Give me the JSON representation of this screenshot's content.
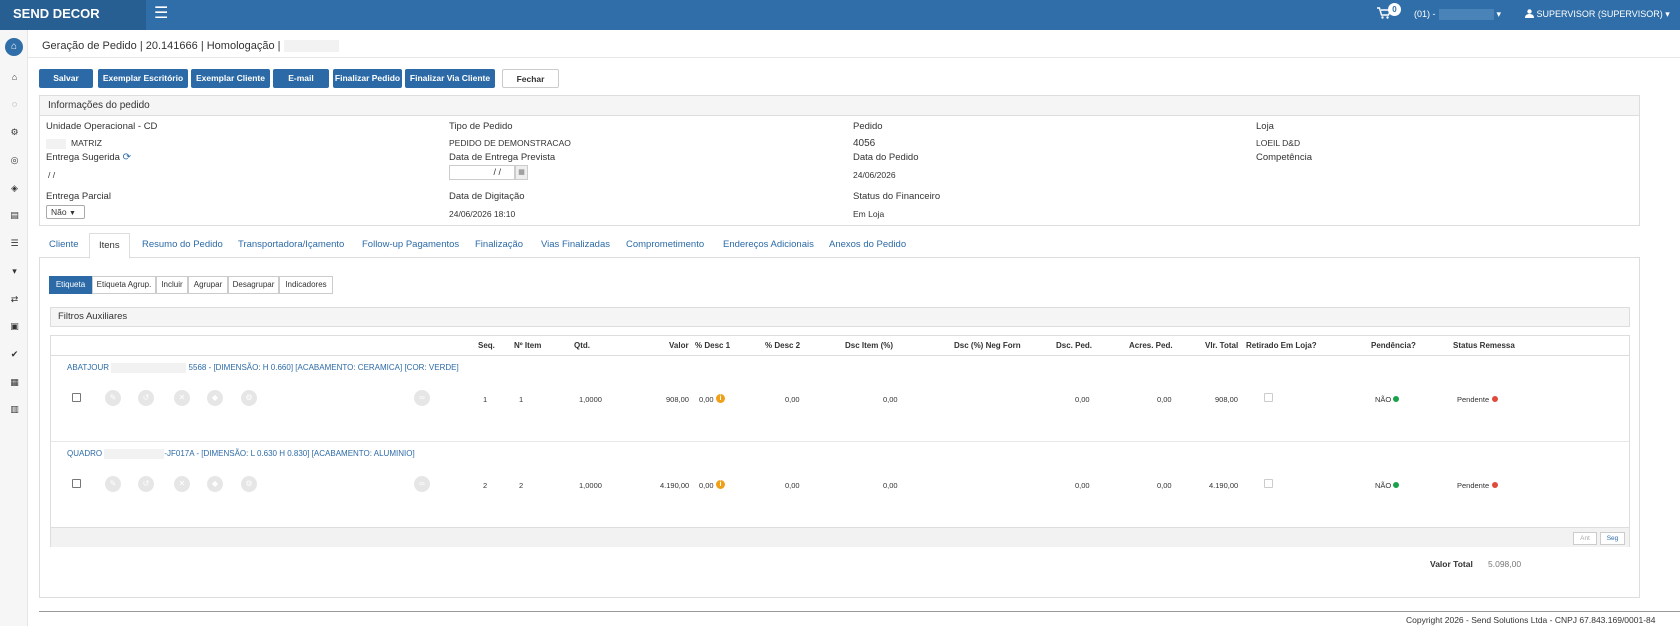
{
  "topbar": {
    "brand": "SEND DECOR",
    "cart_count": "0",
    "store_prefix": "(01) -",
    "user_label": "SUPERVISOR (SUPERVISOR)",
    "user_caret": "▾",
    "store_caret": "▾"
  },
  "breadcrumb": {
    "text": "Geração de Pedido | 20.141666 | Homologação |"
  },
  "toolbar": {
    "save": "Salvar",
    "copy_office": "Exemplar Escritório",
    "copy_client": "Exemplar Cliente",
    "email": "E-mail",
    "finish": "Finalizar Pedido",
    "finish_via": "Finalizar Via Cliente",
    "close": "Fechar"
  },
  "order_info": {
    "title": "Informações do pedido",
    "unit_label": "Unidade Operacional - CD",
    "unit_value": "MATRIZ",
    "type_label": "Tipo de Pedido",
    "type_value": "PEDIDO DE DEMONSTRACAO",
    "order_label": "Pedido",
    "order_value": "4056",
    "store_label": "Loja",
    "store_value": "LOEIL D&D",
    "suggested_label": "Entrega Sugerida",
    "suggested_value": "/ /",
    "expected_label": "Data de Entrega Prevista",
    "expected_value": "/ /",
    "order_date_label": "Data do Pedido",
    "order_date_value": "24/06/2026",
    "competence_label": "Competência",
    "partial_label": "Entrega Parcial",
    "partial_value": "Não",
    "typed_label": "Data de Digitação",
    "typed_value": "24/06/2026 18:10",
    "fin_status_label": "Status do Financeiro",
    "fin_status_value": "Em Loja"
  },
  "tabs": [
    "Cliente",
    "Itens",
    "Resumo do Pedido",
    "Transportadora/Içamento",
    "Follow-up Pagamentos",
    "Finalização",
    "Vias Finalizadas",
    "Comprometimento",
    "Endereços Adicionais",
    "Anexos do Pedido"
  ],
  "active_tab": "Itens",
  "subtabs": [
    "Etiqueta",
    "Etiqueta Agrup.",
    "Incluir",
    "Agrupar",
    "Desagrupar",
    "Indicadores"
  ],
  "filters_title": "Filtros Auxiliares",
  "columns": [
    "Seq.",
    "Nº Item",
    "Qtd.",
    "Valor",
    "% Desc 1",
    "% Desc 2",
    "Dsc Item (%)",
    "Dsc (%) Neg Forn",
    "Dsc. Ped.",
    "Acres. Ped.",
    "Vlr. Total",
    "Retirado Em Loja?",
    "Pendência?",
    "Status Remessa"
  ],
  "items": [
    {
      "name_prefix": "ABATJOUR",
      "name_suffix": "5568 - [DIMENSÃO: H 0.660] [ACABAMENTO: CERAMICA] [COR: VERDE]",
      "seq": "1",
      "item_no": "1",
      "qty": "1,0000",
      "value": "908,00",
      "desc1": "0,00",
      "desc2": "0,00",
      "dsc_item": "0,00",
      "dsc_ped": "0,00",
      "acres_ped": "0,00",
      "total": "908,00",
      "pendencia": "NÃO",
      "status": "Pendente"
    },
    {
      "name_prefix": "QUADRO",
      "name_suffix": "-JF017A - [DIMENSÃO: L 0.630 H 0.830] [ACABAMENTO: ALUMINIO]",
      "seq": "2",
      "item_no": "2",
      "qty": "1,0000",
      "value": "4.190,00",
      "desc1": "0,00",
      "desc2": "0,00",
      "dsc_item": "0,00",
      "dsc_ped": "0,00",
      "acres_ped": "0,00",
      "total": "4.190,00",
      "pendencia": "NÃO",
      "status": "Pendente"
    }
  ],
  "pager": {
    "prev": "Ant",
    "next": "Seg"
  },
  "total": {
    "label": "Valor Total",
    "value": "5.098,00"
  },
  "footer": "Copyright 2026 - Send Solutions Ltda - CNPJ 67.843.169/0001-84",
  "colors": {
    "primary": "#2c6aa7",
    "topbar": "#2f6ea8",
    "ok": "#1aa24a",
    "pending": "#e04a3a",
    "info": "#f0a018"
  },
  "sidebar_icons": [
    "logo-icon",
    "home-icon",
    "spinner-icon",
    "cogs-icon",
    "target-icon",
    "cube-icon",
    "database-icon",
    "sliders-icon",
    "cart-icon",
    "exchange-icon",
    "briefcase-icon",
    "check-icon",
    "qrcode-icon",
    "chart-icon"
  ]
}
